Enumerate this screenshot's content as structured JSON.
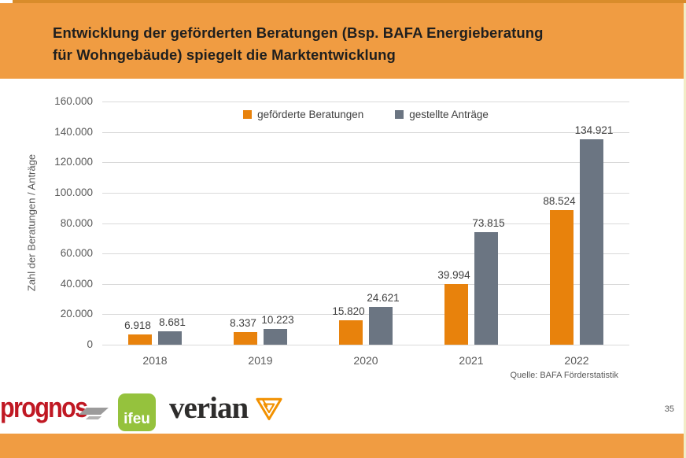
{
  "slide": {
    "title": "Entwicklung der geförderten Beratungen (Bsp. BAFA Energieberatung\nfür Wohngebäude) spiegelt die Marktentwicklung",
    "page_number": "35",
    "source_note": "Quelle: BAFA Förderstatistik"
  },
  "chart_data": {
    "type": "bar",
    "title": "",
    "xlabel": "",
    "ylabel": "Zahl der Beratungen / Anträge",
    "categories": [
      "2018",
      "2019",
      "2020",
      "2021",
      "2022"
    ],
    "series": [
      {
        "name": "geförderte Beratungen",
        "color": "#e8820c",
        "values": [
          6918,
          8337,
          15820,
          39994,
          88524
        ],
        "labels": [
          "6.918",
          "8.337",
          "15.820",
          "39.994",
          "88.524"
        ]
      },
      {
        "name": "gestellte Anträge",
        "color": "#6b7582",
        "values": [
          8681,
          10223,
          24621,
          73815,
          134921
        ],
        "labels": [
          "8.681",
          "10.223",
          "24.621",
          "73.815",
          "134.921"
        ]
      }
    ],
    "ylim": [
      0,
      160000
    ],
    "ytick_step": 20000,
    "ytick_labels": [
      "0",
      "20.000",
      "40.000",
      "60.000",
      "80.000",
      "100.000",
      "120.000",
      "140.000",
      "160.000"
    ],
    "grid": true,
    "legend_position": "top-center"
  },
  "colors": {
    "header_bg": "#f09c42",
    "footer_bar": "#f09c42",
    "gridline": "#d9d9d9",
    "axis_text": "#595959",
    "value_label_text": "#3f3f3f",
    "title_text": "#1f1f1f"
  },
  "logos": {
    "prognos": {
      "text": "prognos",
      "color": "#c01823"
    },
    "ifeu": {
      "text": "ifeu",
      "bg": "#95c23d"
    },
    "verian": {
      "text": "verian",
      "accent": "#f29100"
    }
  }
}
